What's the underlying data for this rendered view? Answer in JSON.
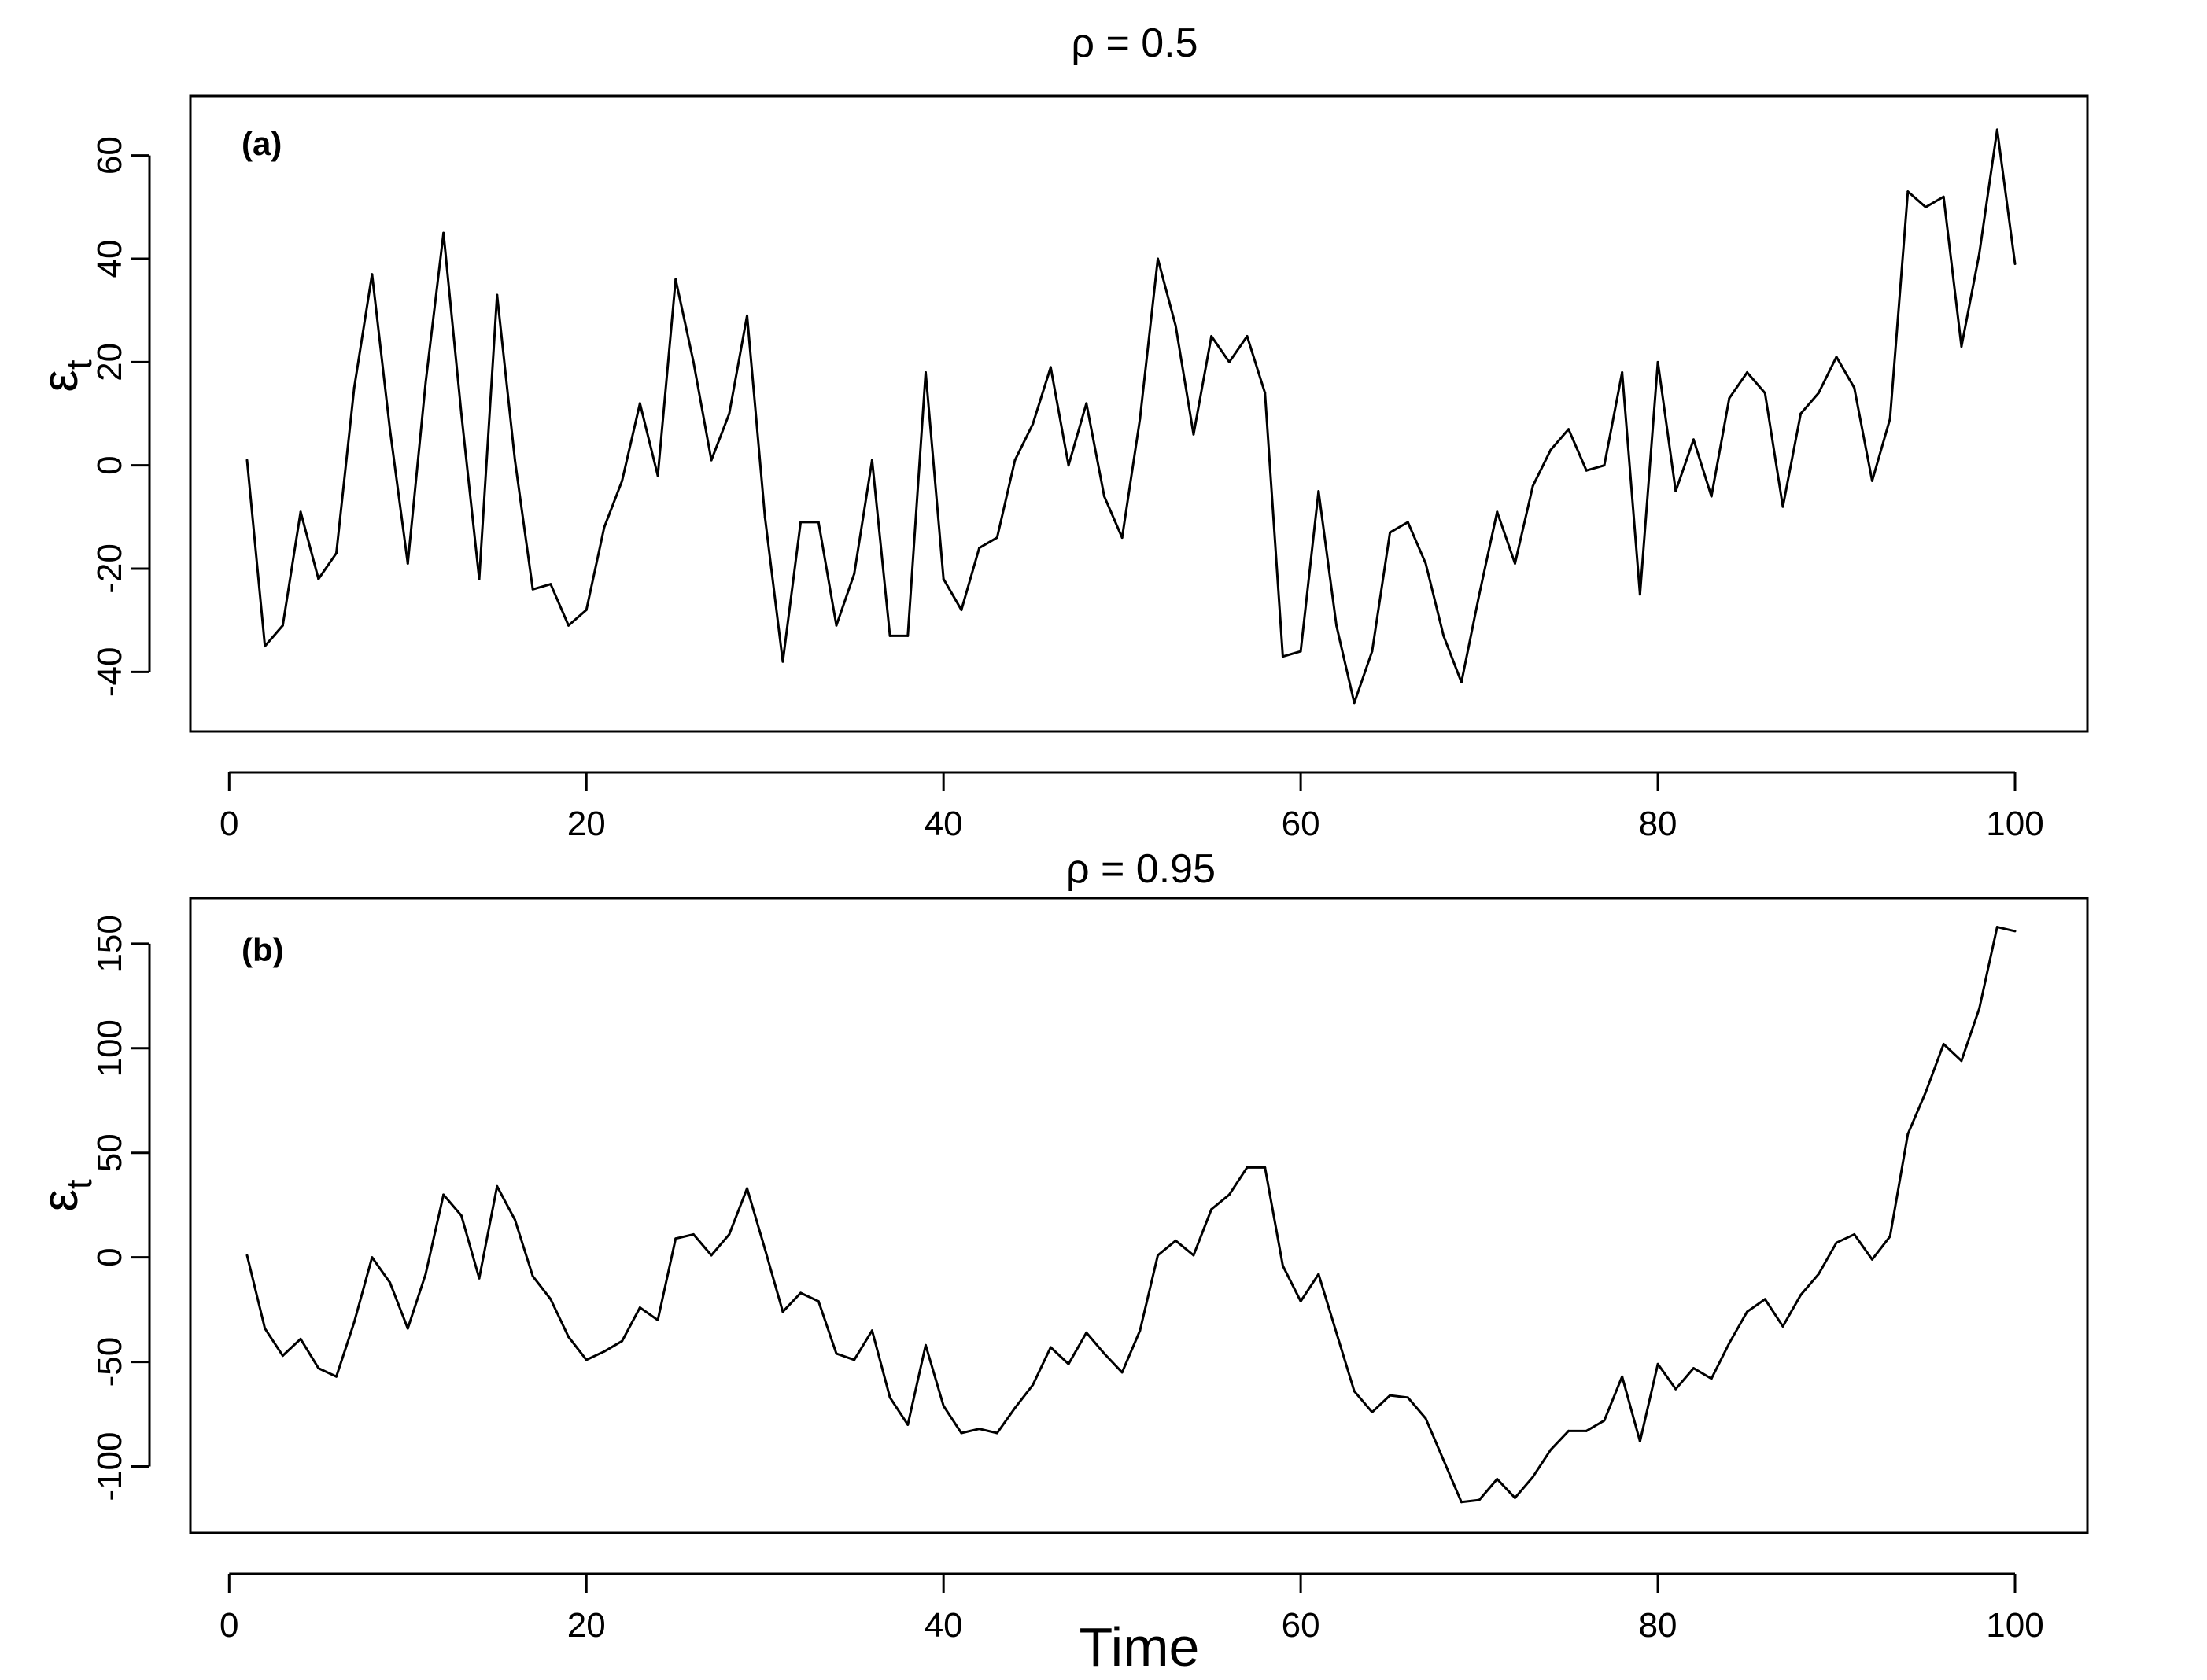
{
  "chart_data": [
    {
      "type": "line",
      "title": "ρ = 0.5",
      "panel_label": "(a)",
      "xlabel": "",
      "ylabel": "εt",
      "ylabel_main": "ε",
      "ylabel_sub": "t",
      "xlim": [
        1,
        100
      ],
      "ylim": [
        -50,
        70
      ],
      "xticks": [
        0,
        20,
        40,
        60,
        80,
        100
      ],
      "yticks": [
        -40,
        -20,
        0,
        20,
        40,
        60
      ],
      "grid": false,
      "x": [
        1,
        2,
        3,
        4,
        5,
        6,
        7,
        8,
        9,
        10,
        11,
        12,
        13,
        14,
        15,
        16,
        17,
        18,
        19,
        20,
        21,
        22,
        23,
        24,
        25,
        26,
        27,
        28,
        29,
        30,
        31,
        32,
        33,
        34,
        35,
        36,
        37,
        38,
        39,
        40,
        41,
        42,
        43,
        44,
        45,
        46,
        47,
        48,
        49,
        50,
        51,
        52,
        53,
        54,
        55,
        56,
        57,
        58,
        59,
        60,
        61,
        62,
        63,
        64,
        65,
        66,
        67,
        68,
        69,
        70,
        71,
        72,
        73,
        74,
        75,
        76,
        77,
        78,
        79,
        80,
        81,
        82,
        83,
        84,
        85,
        86,
        87,
        88,
        89,
        90,
        91,
        92,
        93,
        94,
        95,
        96,
        97,
        98,
        99,
        100
      ],
      "series": [
        {
          "values": [
            1,
            -35,
            -31,
            -9,
            -22,
            -17,
            15,
            37,
            7,
            -19,
            16,
            45,
            10,
            -22,
            33,
            1,
            -24,
            -23,
            -31,
            -28,
            -12,
            -3,
            12,
            -2,
            36,
            20,
            1,
            10,
            29,
            -10,
            -38,
            -11,
            -11,
            -31,
            -21,
            1,
            -33,
            -33,
            18,
            -22,
            -28,
            -16,
            -14,
            1,
            8,
            19,
            0,
            12,
            -6,
            -14,
            9,
            40,
            27,
            6,
            25,
            20,
            25,
            14,
            -37,
            -36,
            -5,
            -31,
            -46,
            -36,
            -13,
            -11,
            -19,
            -33,
            -42,
            -25,
            -9,
            -19,
            -4,
            3,
            7,
            -1,
            0,
            18,
            -25,
            20,
            -5,
            5,
            -6,
            13,
            18,
            14,
            -8,
            10,
            14,
            21,
            15,
            -3,
            9,
            53,
            50,
            52,
            23,
            41,
            65,
            39
          ]
        }
      ]
    },
    {
      "type": "line",
      "title": "ρ = 0.95",
      "panel_label": "(b)",
      "xlabel": "Time",
      "ylabel": "εt",
      "ylabel_main": "ε",
      "ylabel_sub": "t",
      "xlim": [
        1,
        100
      ],
      "ylim": [
        -128,
        168
      ],
      "xticks": [
        0,
        20,
        40,
        60,
        80,
        100
      ],
      "yticks": [
        -100,
        -50,
        0,
        50,
        100,
        150
      ],
      "grid": false,
      "x": [
        1,
        2,
        3,
        4,
        5,
        6,
        7,
        8,
        9,
        10,
        11,
        12,
        13,
        14,
        15,
        16,
        17,
        18,
        19,
        20,
        21,
        22,
        23,
        24,
        25,
        26,
        27,
        28,
        29,
        30,
        31,
        32,
        33,
        34,
        35,
        36,
        37,
        38,
        39,
        40,
        41,
        42,
        43,
        44,
        45,
        46,
        47,
        48,
        49,
        50,
        51,
        52,
        53,
        54,
        55,
        56,
        57,
        58,
        59,
        60,
        61,
        62,
        63,
        64,
        65,
        66,
        67,
        68,
        69,
        70,
        71,
        72,
        73,
        74,
        75,
        76,
        77,
        78,
        79,
        80,
        81,
        82,
        83,
        84,
        85,
        86,
        87,
        88,
        89,
        90,
        91,
        92,
        93,
        94,
        95,
        96,
        97,
        98,
        99,
        100
      ],
      "series": [
        {
          "values": [
            1,
            -34,
            -47,
            -39,
            -53,
            -57,
            -31,
            0,
            -12,
            -34,
            -8,
            30,
            20,
            -10,
            34,
            18,
            -9,
            -20,
            -38,
            -49,
            -45,
            -40,
            -24,
            -30,
            9,
            11,
            1,
            11,
            33,
            4,
            -26,
            -17,
            -21,
            -46,
            -49,
            -35,
            -67,
            -80,
            -42,
            -71,
            -84,
            -82,
            -84,
            -72,
            -61,
            -43,
            -51,
            -36,
            -46,
            -55,
            -35,
            1,
            8,
            1,
            23,
            30,
            43,
            43,
            -4,
            -21,
            -8,
            -36,
            -64,
            -74,
            -66,
            -67,
            -77,
            -97,
            -117,
            -116,
            -106,
            -115,
            -105,
            -92,
            -83,
            -83,
            -78,
            -57,
            -88,
            -51,
            -63,
            -53,
            -58,
            -41,
            -26,
            -20,
            -33,
            -18,
            -8,
            7,
            11,
            -1,
            10,
            59,
            79,
            102,
            94,
            119,
            158,
            156
          ]
        }
      ]
    }
  ]
}
